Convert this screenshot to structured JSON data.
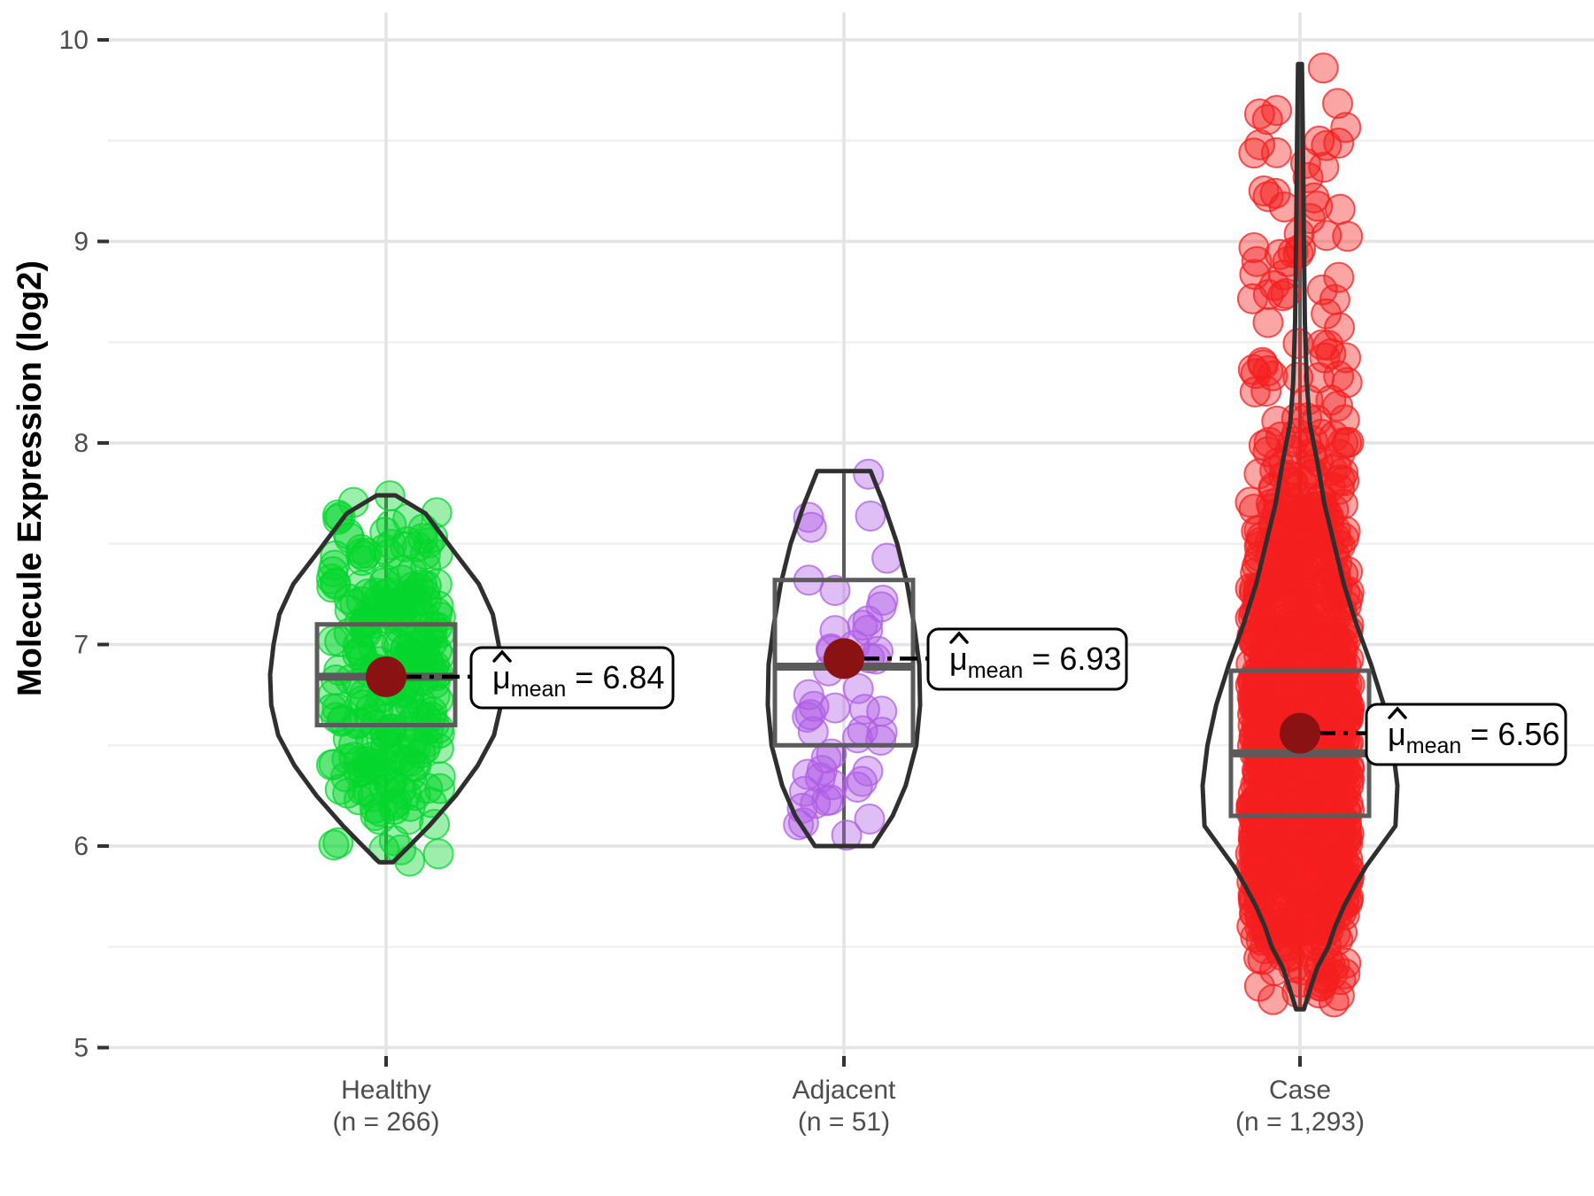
{
  "chart_data": {
    "type": "violin-box-jitter",
    "title": "",
    "xlabel": "",
    "ylabel": "Molecule Expression (log2)",
    "ylim": [
      5,
      10
    ],
    "y_major_ticks": [
      10,
      9,
      8,
      7,
      6,
      5
    ],
    "y_major_tick_labels": [
      "10",
      "9",
      "8",
      "7",
      "6",
      "5"
    ],
    "y_minor_gridlines": [
      9.5,
      8.5,
      7.5,
      6.5,
      5.5
    ],
    "grid": "horizontal major+minor gridlines on; vertical major gridline at each category; white background; no panel border",
    "legend": "none",
    "groups": [
      {
        "label": "Healthy",
        "n_label": "(n = 266)",
        "n": 266,
        "point_color": "#06D62E",
        "mean": 6.84,
        "median": 6.84,
        "q1": 6.6,
        "q3": 7.1,
        "whisker_low": 5.93,
        "whisker_high": 7.73,
        "min": 5.92,
        "max": 7.74,
        "mean_annotation": {
          "symbol": "μ",
          "hat": "ˆ",
          "subscript": "mean",
          "value": "6.84"
        },
        "violin_profile": [
          [
            5.92,
            0.06
          ],
          [
            6.0,
            0.2
          ],
          [
            6.1,
            0.37
          ],
          [
            6.25,
            0.6
          ],
          [
            6.4,
            0.79
          ],
          [
            6.55,
            0.93
          ],
          [
            6.7,
            0.99
          ],
          [
            6.85,
            1.0
          ],
          [
            7.0,
            0.97
          ],
          [
            7.15,
            0.92
          ],
          [
            7.3,
            0.8
          ],
          [
            7.45,
            0.6
          ],
          [
            7.55,
            0.47
          ],
          [
            7.65,
            0.34
          ],
          [
            7.74,
            0.08
          ]
        ]
      },
      {
        "label": "Adjacent",
        "n_label": "(n = 51)",
        "n": 51,
        "point_color": "#B05CE6",
        "mean": 6.93,
        "median": 6.89,
        "q1": 6.5,
        "q3": 7.32,
        "whisker_low": 6.01,
        "whisker_high": 7.85,
        "min": 6.0,
        "max": 7.86,
        "mean_annotation": {
          "symbol": "μ",
          "hat": "ˆ",
          "subscript": "mean",
          "value": "6.93"
        },
        "violin_profile": [
          [
            6.0,
            0.38
          ],
          [
            6.15,
            0.64
          ],
          [
            6.3,
            0.81
          ],
          [
            6.5,
            0.95
          ],
          [
            6.7,
            1.0
          ],
          [
            6.9,
            0.99
          ],
          [
            7.1,
            0.92
          ],
          [
            7.3,
            0.83
          ],
          [
            7.5,
            0.7
          ],
          [
            7.7,
            0.52
          ],
          [
            7.86,
            0.35
          ]
        ]
      },
      {
        "label": "Case",
        "n_label": "(n = 1,293)",
        "n": 1293,
        "point_color": "#F51F1F",
        "mean": 6.56,
        "median": 6.46,
        "q1": 6.15,
        "q3": 6.87,
        "whisker_low": 5.19,
        "whisker_high": 9.87,
        "min": 5.19,
        "max": 9.88,
        "mean_annotation": {
          "symbol": "μ",
          "hat": "ˆ",
          "subscript": "mean",
          "value": "6.56"
        },
        "violin_profile": [
          [
            5.19,
            0.04
          ],
          [
            5.3,
            0.11
          ],
          [
            5.4,
            0.18
          ],
          [
            5.5,
            0.29
          ],
          [
            5.6,
            0.36
          ],
          [
            5.7,
            0.45
          ],
          [
            5.8,
            0.56
          ],
          [
            5.9,
            0.68
          ],
          [
            6.1,
            0.98
          ],
          [
            6.3,
            1.0
          ],
          [
            6.5,
            0.95
          ],
          [
            6.7,
            0.86
          ],
          [
            6.9,
            0.73
          ],
          [
            7.1,
            0.58
          ],
          [
            7.3,
            0.45
          ],
          [
            7.5,
            0.35
          ],
          [
            7.7,
            0.25
          ],
          [
            7.9,
            0.18
          ],
          [
            8.1,
            0.1
          ],
          [
            8.3,
            0.07
          ],
          [
            8.6,
            0.05
          ],
          [
            9.0,
            0.04
          ],
          [
            9.5,
            0.03
          ],
          [
            9.88,
            0.02
          ]
        ]
      }
    ],
    "style": {
      "mean_dot_color": "#8B1212",
      "box_color": "#5B5B5B",
      "violin_outline_color": "#2F2F2F",
      "grid_major_color": "#E4E4E4",
      "grid_minor_color": "#F1F1F1",
      "axis_tick_color": "#333333",
      "tick_text_color": "#4D4D4D",
      "axis_title_color": "#000000",
      "label_box_fill": "#FFFFFF",
      "label_box_border": "#000000",
      "connector_color": "#000000"
    }
  }
}
